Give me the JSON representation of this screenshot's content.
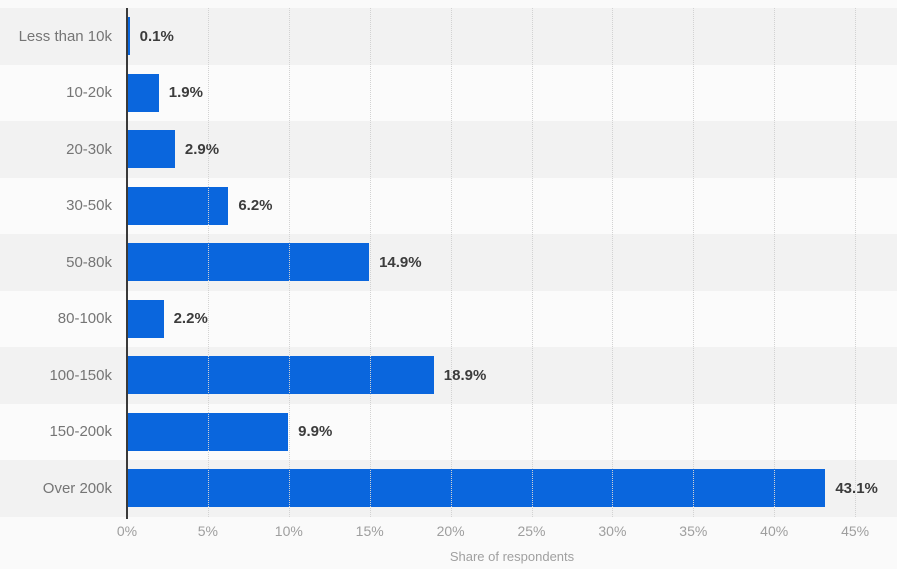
{
  "chart_data": {
    "type": "bar",
    "orientation": "horizontal",
    "title": "",
    "xlabel": "Share of respondents",
    "ylabel": "",
    "categories": [
      "Less than 10k",
      "10-20k",
      "20-30k",
      "30-50k",
      "50-80k",
      "80-100k",
      "100-150k",
      "150-200k",
      "Over 200k"
    ],
    "values": [
      0.1,
      1.9,
      2.9,
      6.2,
      14.9,
      2.2,
      18.9,
      9.9,
      43.1
    ],
    "value_labels": [
      "0.1%",
      "1.9%",
      "2.9%",
      "6.2%",
      "14.9%",
      "2.2%",
      "18.9%",
      "9.9%",
      "43.1%"
    ],
    "xlim": [
      0,
      45
    ],
    "x_tick_values": [
      0,
      5,
      10,
      15,
      20,
      25,
      30,
      35,
      40,
      45
    ],
    "x_tick_labels": [
      "0%",
      "5%",
      "10%",
      "15%",
      "20%",
      "25%",
      "30%",
      "35%",
      "40%",
      "45%"
    ],
    "grid": "vertical-dotted",
    "legend": "none",
    "colors": {
      "bar": "#0a66dd",
      "stripe_dark": "#f2f2f2",
      "stripe_light": "#fbfbfb",
      "page_background": "#fafafa",
      "axis_line": "#3a3a3a",
      "category_label": "#757575",
      "value_label": "#3c3c3c",
      "tick_label": "#9e9e9e",
      "gridline": "#d2d2d2"
    }
  }
}
